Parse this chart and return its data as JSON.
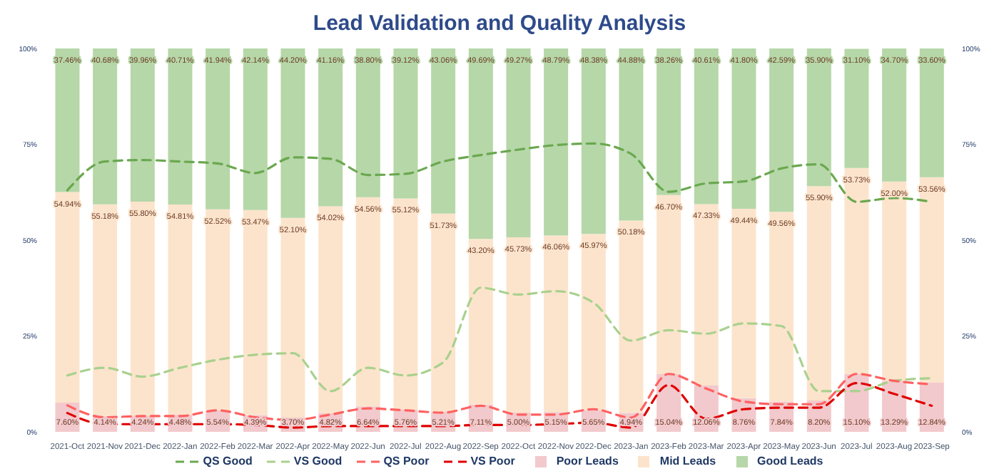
{
  "chart_data": {
    "type": "bar",
    "title": "Lead Validation and Quality Analysis",
    "categories": [
      "2021-Oct",
      "2021-Nov",
      "2021-Dec",
      "2022-Jan",
      "2022-Feb",
      "2022-Mar",
      "2022-Apr",
      "2022-May",
      "2022-Jun",
      "2022-Jul",
      "2022-Aug",
      "2022-Sep",
      "2022-Oct",
      "2022-Nov",
      "2022-Dec",
      "2023-Jan",
      "2023-Feb",
      "2023-Mar",
      "2023-Apr",
      "2023-May",
      "2023-Jun",
      "2023-Jul",
      "2023-Aug",
      "2023-Sep"
    ],
    "stacked": true,
    "series": [
      {
        "name": "QS Good",
        "type": "line",
        "line_style": "dashed",
        "color": "#6aa84f",
        "values": [
          63,
          70.5,
          70.9,
          70.5,
          70,
          67.5,
          71.6,
          71.2,
          67,
          67.3,
          70.5,
          72.2,
          73.6,
          74.8,
          75.2,
          72.5,
          62.6,
          64.8,
          65.3,
          68.7,
          69.8,
          60,
          61,
          60
        ]
      },
      {
        "name": "VS Good",
        "type": "line",
        "line_style": "dashed",
        "color": "#a9d18e",
        "values": [
          14.7,
          16.7,
          14.4,
          16.7,
          18.8,
          20.1,
          20.5,
          10.6,
          16.7,
          14.7,
          18.1,
          37.6,
          35.8,
          36.7,
          33.7,
          23.8,
          26.5,
          25.6,
          28.3,
          27.6,
          10.6,
          10.6,
          13.3,
          14
        ]
      },
      {
        "name": "QS Poor",
        "type": "line",
        "line_style": "dashed",
        "color": "#ff6161",
        "values": [
          6.9,
          3.8,
          4.1,
          4.1,
          5.6,
          3.8,
          3.1,
          4.5,
          6.1,
          5.6,
          5,
          6.8,
          4.5,
          4.5,
          5.9,
          3.7,
          15.1,
          11.3,
          7.9,
          7.2,
          7.2,
          15.1,
          13.3,
          12.4
        ]
      },
      {
        "name": "VS Poor",
        "type": "line",
        "line_style": "dashed",
        "color": "#e00000",
        "values": [
          4.9,
          2,
          2,
          2,
          2,
          1.8,
          1.1,
          1.5,
          1.5,
          1.5,
          1.5,
          1.8,
          1.8,
          2,
          2.4,
          1.1,
          12.2,
          3.4,
          5.9,
          6.3,
          6.3,
          12.7,
          9.9,
          6.8
        ]
      },
      {
        "name": "Poor Leads",
        "color": "#f2c9cc",
        "values": [
          7.6,
          4.14,
          4.24,
          4.48,
          5.54,
          4.39,
          3.7,
          4.82,
          6.64,
          5.76,
          5.21,
          7.11,
          5,
          5.15,
          5.65,
          4.94,
          15.04,
          12.06,
          8.76,
          7.84,
          8.2,
          15.1,
          13.29,
          12.84
        ],
        "value_labels": [
          "7.60%",
          "4.14%",
          "4.24%",
          "4.48%",
          "5.54%",
          "4.39%",
          "3.70%",
          "4.82%",
          "6.64%",
          "5.76%",
          "5.21%",
          "7.11%",
          "5.00%",
          "5.15%",
          "5.65%",
          "4.94%",
          "15.04%",
          "12.06%",
          "8.76%",
          "7.84%",
          "8.20%",
          "15.10%",
          "13.29%",
          "12.84%"
        ]
      },
      {
        "name": "Mid Leads",
        "color": "#fce4cc",
        "values": [
          54.94,
          55.18,
          55.8,
          54.81,
          52.52,
          53.47,
          52.1,
          54.02,
          54.56,
          55.12,
          51.73,
          43.2,
          45.73,
          46.06,
          45.97,
          50.18,
          46.7,
          47.33,
          49.44,
          49.56,
          55.9,
          53.73,
          52,
          53.56
        ],
        "value_labels": [
          "54.94%",
          "55.18%",
          "55.80%",
          "54.81%",
          "52.52%",
          "53.47%",
          "52.10%",
          "54.02%",
          "54.56%",
          "55.12%",
          "51.73%",
          "43.20%",
          "45.73%",
          "46.06%",
          "45.97%",
          "50.18%",
          "46.70%",
          "47.33%",
          "49.44%",
          "49.56%",
          "55.90%",
          "53.73%",
          "52.00%",
          "53.56%"
        ]
      },
      {
        "name": "Good Leads",
        "color": "#b6d7a8",
        "values": [
          37.46,
          40.68,
          39.96,
          40.71,
          41.94,
          42.14,
          44.2,
          41.16,
          38.8,
          39.12,
          43.06,
          49.69,
          49.27,
          48.79,
          48.38,
          44.88,
          38.26,
          40.61,
          41.8,
          42.59,
          35.9,
          31.1,
          34.7,
          33.6
        ],
        "value_labels": [
          "37.46%",
          "40.68%",
          "39.96%",
          "40.71%",
          "41.94%",
          "42.14%",
          "44.20%",
          "41.16%",
          "38.80%",
          "39.12%",
          "43.06%",
          "49.69%",
          "49.27%",
          "48.79%",
          "48.38%",
          "44.88%",
          "38.26%",
          "40.61%",
          "41.80%",
          "42.59%",
          "35.90%",
          "31.10%",
          "34.70%",
          "33.60%"
        ]
      }
    ],
    "ylim": [
      0,
      100
    ],
    "yticks": [
      {
        "value": 0,
        "label": "0%"
      },
      {
        "value": 25,
        "label": "25%"
      },
      {
        "value": 50,
        "label": "50%"
      },
      {
        "value": 75,
        "label": "75%"
      },
      {
        "value": 100,
        "label": "100%"
      }
    ],
    "y2lim": [
      0,
      100
    ],
    "y2ticks": [
      {
        "value": 0,
        "label": "0%"
      },
      {
        "value": 25,
        "label": "25%"
      },
      {
        "value": 50,
        "label": "50%"
      },
      {
        "value": 75,
        "label": "75%"
      },
      {
        "value": 100,
        "label": "100%"
      }
    ],
    "grid": false,
    "legend": "bottom"
  }
}
